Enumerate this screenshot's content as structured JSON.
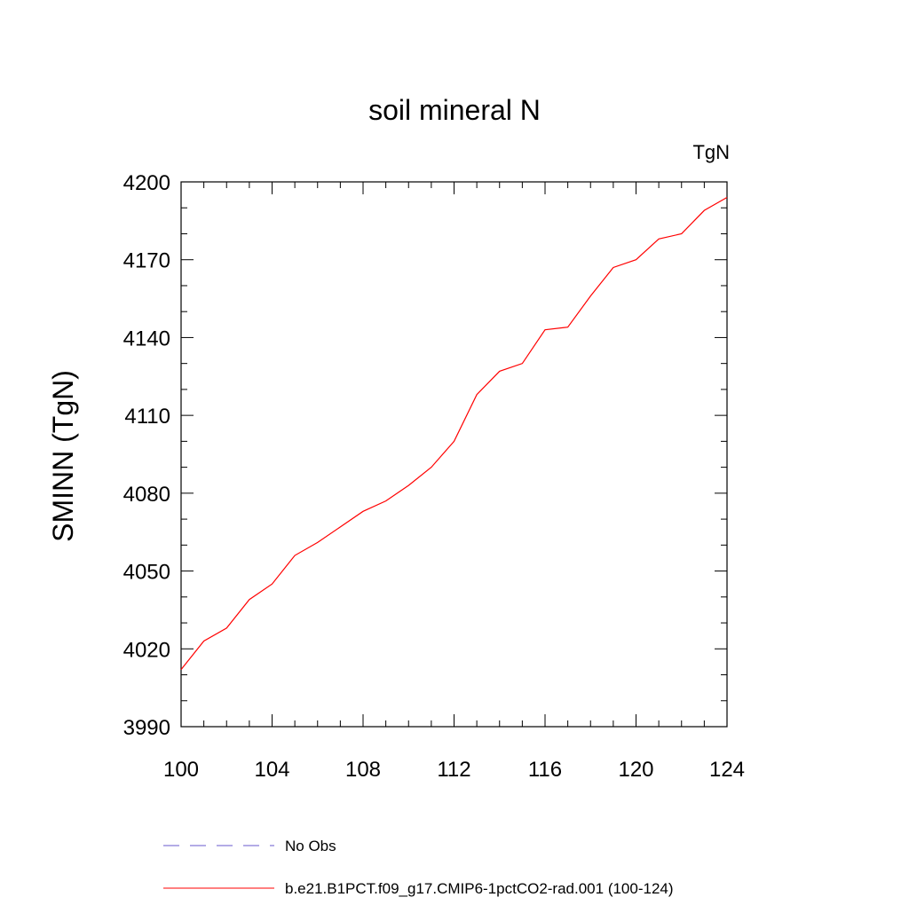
{
  "chart_data": {
    "type": "line",
    "title": "soil mineral N",
    "units_label": "TgN",
    "xlabel": "",
    "ylabel": "SMINN  (TgN)",
    "xlim": [
      100,
      124
    ],
    "ylim": [
      3990,
      4200
    ],
    "x_ticks": [
      100,
      104,
      108,
      112,
      116,
      120,
      124
    ],
    "y_ticks": [
      3990,
      4020,
      4050,
      4080,
      4110,
      4140,
      4170,
      4200
    ],
    "x_tick_labels": [
      "100",
      "104",
      "108",
      "112",
      "116",
      "120",
      "124"
    ],
    "y_tick_labels": [
      "3990",
      "4020",
      "4050",
      "4080",
      "4110",
      "4140",
      "4170",
      "4200"
    ],
    "grid": false,
    "legend_position": "bottom",
    "series": [
      {
        "name": "b.e21.B1PCT.f09_g17.CMIP6-1pctCO2-rad.001 (100-124)",
        "color": "#ff0000",
        "style": "solid",
        "x": [
          100,
          101,
          102,
          103,
          104,
          105,
          106,
          107,
          108,
          109,
          110,
          111,
          112,
          113,
          114,
          115,
          116,
          117,
          118,
          119,
          120,
          121,
          122,
          123,
          124
        ],
        "y": [
          4012,
          4023,
          4028,
          4039,
          4045,
          4056,
          4061,
          4067,
          4073,
          4077,
          4083,
          4090,
          4100,
          4118,
          4127,
          4130,
          4143,
          4144,
          4156,
          4167,
          4170,
          4178,
          4180,
          4189,
          4194
        ]
      }
    ],
    "legend": [
      {
        "label": "No Obs",
        "color": "#6a5acd",
        "style": "dashed"
      },
      {
        "label": "b.e21.B1PCT.f09_g17.CMIP6-1pctCO2-rad.001 (100-124)",
        "color": "#ff0000",
        "style": "solid"
      }
    ]
  }
}
